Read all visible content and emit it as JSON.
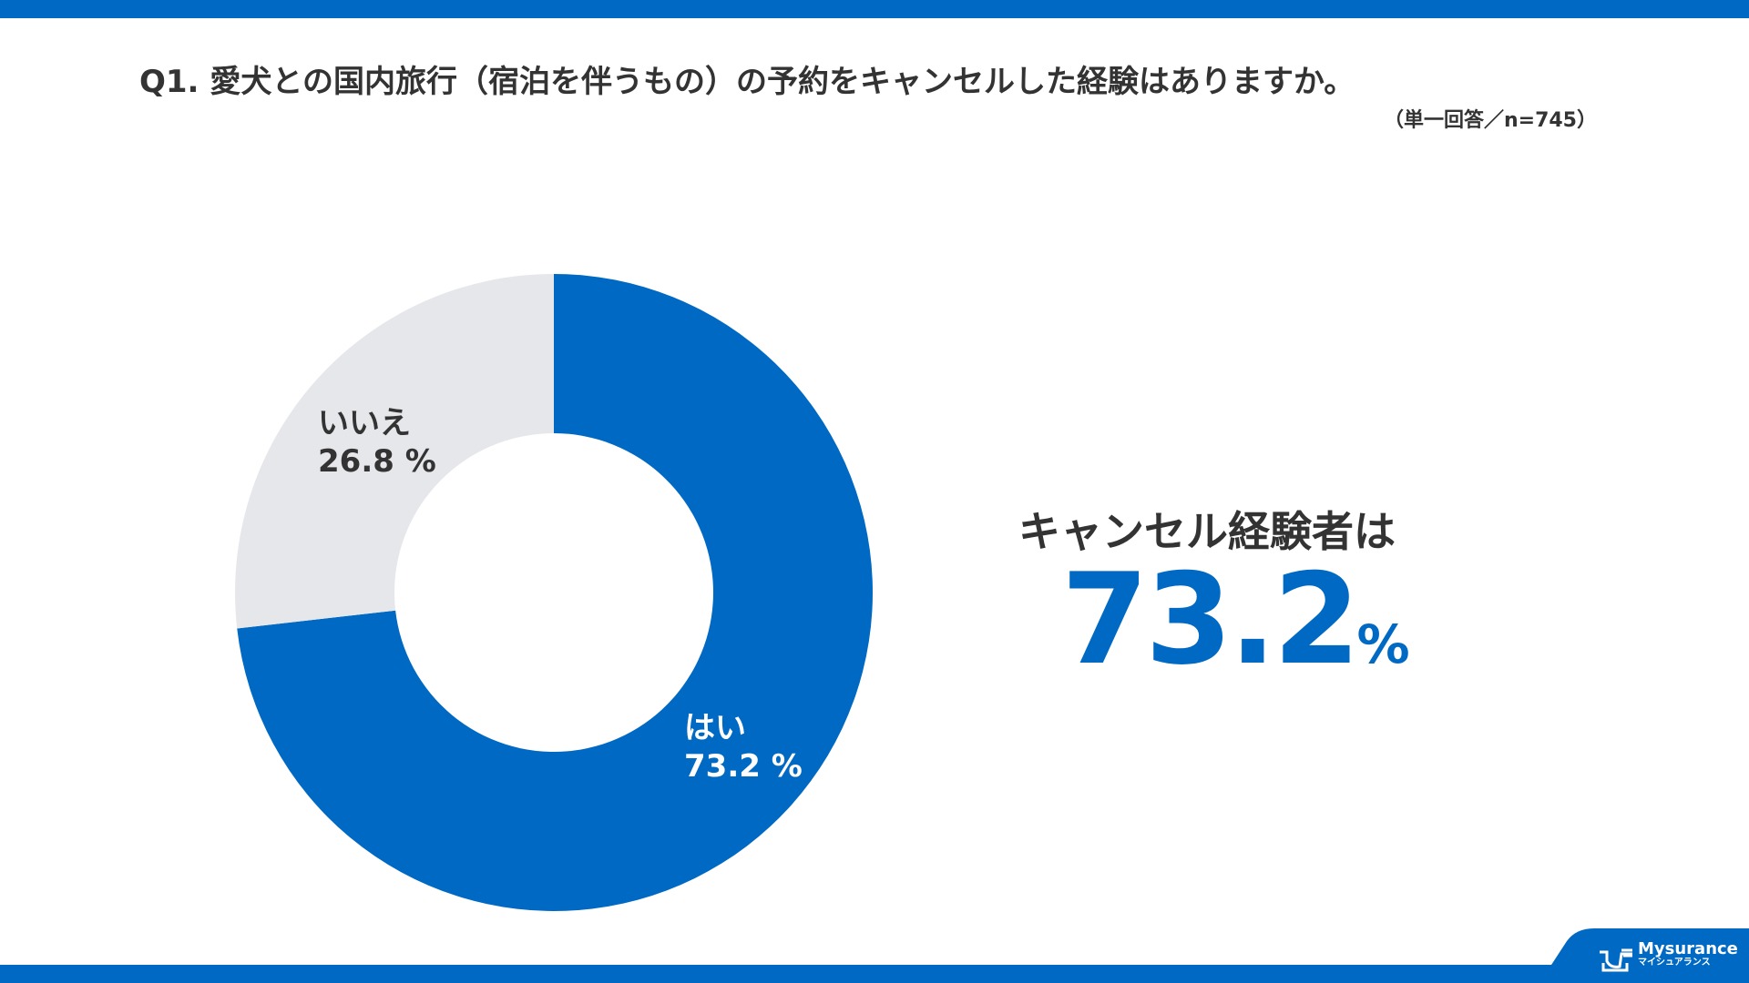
{
  "title": "Q1. 愛犬との国内旅行（宿泊を伴うもの）の予約をキャンセルした経験はありますか。",
  "subtitle": "（単一回答／n=745）",
  "colors": {
    "accent": "#0069c4",
    "no": "#e6e7eb"
  },
  "chart_data": {
    "type": "pie",
    "donut": true,
    "categories": [
      "はい",
      "いいえ"
    ],
    "values": [
      73.2,
      26.8
    ],
    "data_labels": [
      "73.2 %",
      "26.8 %"
    ],
    "colors": [
      "#0069c4",
      "#e6e7eb"
    ]
  },
  "highlight": {
    "label": "キャンセル経験者は",
    "value": "73.2",
    "unit": "%"
  },
  "logo": {
    "name": "Mysurance",
    "kana": "マイシュアランス"
  }
}
